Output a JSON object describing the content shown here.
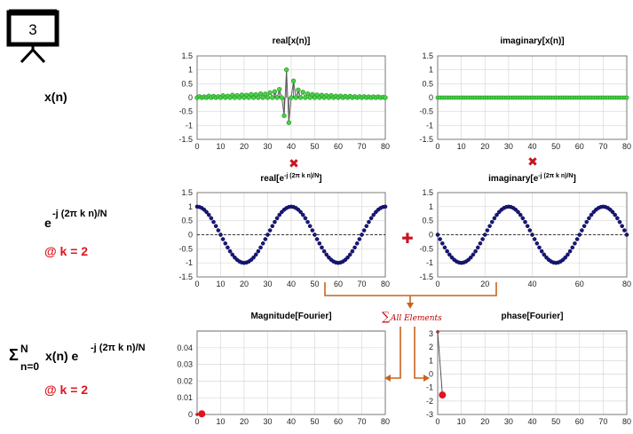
{
  "step_number": "3",
  "row_labels": {
    "signal": "x(n)",
    "kernel": {
      "base": "e",
      "sup": "-j (2π k n)/N",
      "k_note": "@ k = 2"
    },
    "sum": {
      "sigma": "Σ",
      "upper": "N",
      "lower": "n=0",
      "body": "x(n) e",
      "sup": "-j (2π k n)/N",
      "k_note": "@ k = 2"
    }
  },
  "operators": {
    "multiply": "✖",
    "plus": "✚",
    "sum_all": "∑",
    "sum_all_text": "All Elements"
  },
  "colors": {
    "green_stem": "#1f9a1f",
    "green_marker": "#4cd04c",
    "blue_marker": "#16167a",
    "red": "#e0141e",
    "orange_arrow": "#c8641e",
    "grid": "#d8d8d8"
  },
  "chart_data": [
    {
      "id": "real_x",
      "type": "scatter",
      "title": "real[x(n)]",
      "xlim": [
        0,
        80
      ],
      "ylim": [
        -1.5,
        1.5
      ],
      "xticks": [
        "0",
        "10",
        "20",
        "30",
        "40",
        "50",
        "60",
        "70",
        "80"
      ],
      "yticks": [
        "1.5",
        "1",
        "0.5",
        "0",
        "-0.5",
        "-1",
        "-1.5"
      ],
      "grid": true,
      "x": [
        0,
        1,
        2,
        3,
        4,
        5,
        6,
        7,
        8,
        9,
        10,
        11,
        12,
        13,
        14,
        15,
        16,
        17,
        18,
        19,
        20,
        21,
        22,
        23,
        24,
        25,
        26,
        27,
        28,
        29,
        30,
        31,
        32,
        33,
        34,
        35,
        36,
        37,
        38,
        39,
        40,
        41,
        42,
        43,
        44,
        45,
        46,
        47,
        48,
        49,
        50,
        51,
        52,
        53,
        54,
        55,
        56,
        57,
        58,
        59,
        60,
        61,
        62,
        63,
        64,
        65,
        66,
        67,
        68,
        69,
        70,
        71,
        72,
        73,
        74,
        75,
        76,
        77,
        78,
        79,
        80
      ],
      "y": [
        0.0,
        0.04,
        0.0,
        0.03,
        0.0,
        0.06,
        0.0,
        0.05,
        0.0,
        0.04,
        0.0,
        0.07,
        0.0,
        0.06,
        0.0,
        0.09,
        0.0,
        0.08,
        0.0,
        0.1,
        0.0,
        0.09,
        0.0,
        0.12,
        0.0,
        0.11,
        0.0,
        0.14,
        0.0,
        0.13,
        0.0,
        0.18,
        0.0,
        0.22,
        0.0,
        0.3,
        0.0,
        -0.65,
        1.0,
        -0.9,
        0.0,
        0.6,
        0.0,
        0.28,
        0.0,
        0.2,
        0.0,
        0.14,
        0.0,
        0.12,
        0.0,
        0.1,
        0.0,
        0.09,
        0.0,
        0.08,
        0.0,
        0.08,
        0.0,
        0.06,
        0.0,
        0.06,
        0.0,
        0.05,
        0.0,
        0.05,
        0.0,
        0.04,
        0.0,
        0.04,
        0.0,
        0.04,
        0.0,
        0.03,
        0.0,
        0.03,
        0.0,
        0.03,
        0.0,
        0.02,
        0.0
      ],
      "series_style": "stem-line-green"
    },
    {
      "id": "imag_x",
      "type": "scatter",
      "title": "imaginary[x(n)]",
      "xlim": [
        0,
        80
      ],
      "ylim": [
        -1.5,
        1.5
      ],
      "xticks": [
        "0",
        "10",
        "20",
        "30",
        "40",
        "50",
        "60",
        "70",
        "80"
      ],
      "yticks": [
        "1.5",
        "1",
        "0.5",
        "0",
        "-0.5",
        "-1",
        "-1.5"
      ],
      "grid": true,
      "constant_y": 0,
      "n_points": 81,
      "series_style": "markers-green"
    },
    {
      "id": "real_kernel",
      "type": "scatter",
      "title": "real[e",
      "title_sup": "-j (2π k n)/N",
      "title_end": "]",
      "xlim": [
        0,
        80
      ],
      "ylim": [
        -1.5,
        1.5
      ],
      "xticks": [
        "0",
        "10",
        "20",
        "30",
        "40",
        "50",
        "60",
        "70",
        "80"
      ],
      "yticks": [
        "1.5",
        "1",
        "0.5",
        "0",
        "-0.5",
        "-1",
        "-1.5"
      ],
      "grid": true,
      "function": "cos",
      "k": 2,
      "N": 80,
      "n_points": 81,
      "zero_line": "dashed",
      "series_style": "markers-blue"
    },
    {
      "id": "imag_kernel",
      "type": "scatter",
      "title": "imaginary[e",
      "title_sup": "-j (2π k n)/N",
      "title_end": "]",
      "xlim": [
        0,
        80
      ],
      "ylim": [
        -1.5,
        1.5
      ],
      "xticks": [
        "0",
        "20",
        "40",
        "60",
        "80"
      ],
      "yticks": [
        "1.5",
        "1",
        "0.5",
        "0",
        "-0.5",
        "-1",
        "-1.5"
      ],
      "grid": true,
      "function": "-sin",
      "k": 2,
      "N": 80,
      "n_points": 81,
      "zero_line": "dashed",
      "series_style": "markers-blue"
    },
    {
      "id": "magnitude",
      "type": "scatter",
      "title": "Magnitude[Fourier]",
      "xlim": [
        0,
        80
      ],
      "ylim": [
        0,
        0.05
      ],
      "xticks": [
        "0",
        "10",
        "20",
        "30",
        "40",
        "50",
        "60",
        "70",
        "80"
      ],
      "yticks": [
        "0.04",
        "0.03",
        "0.02",
        "0.01",
        "0"
      ],
      "grid": true,
      "x": [
        0,
        2
      ],
      "y": [
        0,
        0.0004
      ],
      "series_style": "red-dot"
    },
    {
      "id": "phase",
      "type": "scatter",
      "title": "phase[Fourier]",
      "xlim": [
        0,
        80
      ],
      "ylim": [
        -3,
        3.2
      ],
      "xticks": [
        "0",
        "10",
        "20",
        "30",
        "40",
        "50",
        "60",
        "70",
        "80"
      ],
      "yticks": [
        "3",
        "2",
        "1",
        "0",
        "-1",
        "-2",
        "-3"
      ],
      "grid": true,
      "x": [
        0,
        2
      ],
      "y": [
        3.14,
        -1.55
      ],
      "series_style": "red-dot"
    }
  ]
}
